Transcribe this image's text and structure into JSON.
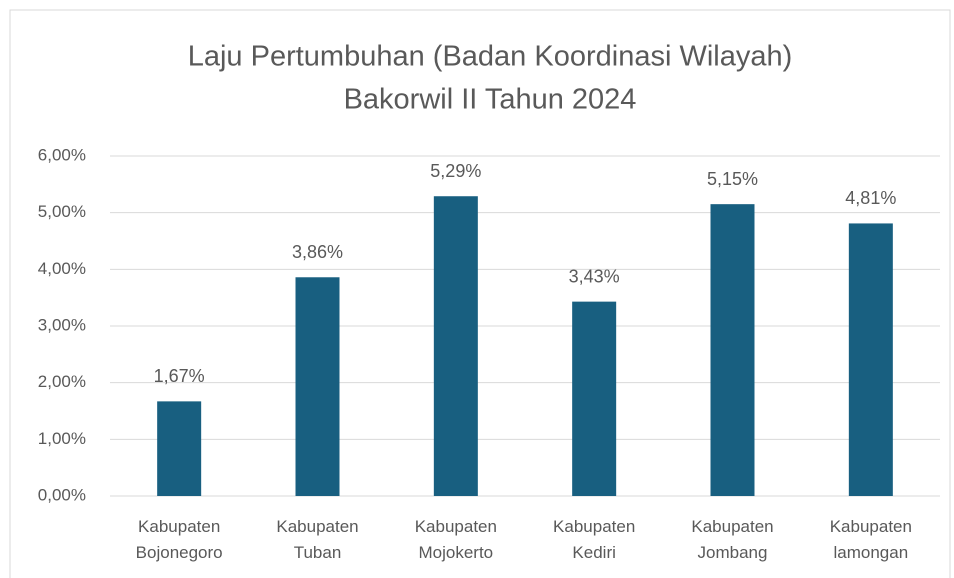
{
  "chart_data": {
    "type": "bar",
    "title": "Laju Pertumbuhan (Badan Koordinasi Wilayah)",
    "subtitle": "Bakorwil II Tahun 2024",
    "categories": [
      "Kabupaten Bojonegoro",
      "Kabupaten Tuban",
      "Kabupaten Mojokerto",
      "Kabupaten Kediri",
      "Kabupaten Jombang",
      "Kabupaten lamongan"
    ],
    "values": [
      1.67,
      3.86,
      5.29,
      3.43,
      5.15,
      4.81
    ],
    "value_labels": [
      "1,67%",
      "3,86%",
      "5,29%",
      "3,43%",
      "5,15%",
      "4,81%"
    ],
    "color": "#185f80",
    "ylim": [
      0,
      6
    ],
    "yticks": [
      {
        "value": 0,
        "label": "0,00%"
      },
      {
        "value": 1,
        "label": "1,00%"
      },
      {
        "value": 2,
        "label": "2,00%"
      },
      {
        "value": 3,
        "label": "3,00%"
      },
      {
        "value": 4,
        "label": "4,00%"
      },
      {
        "value": 5,
        "label": "5,00%"
      },
      {
        "value": 6,
        "label": "6,00%"
      }
    ],
    "grid": true
  }
}
